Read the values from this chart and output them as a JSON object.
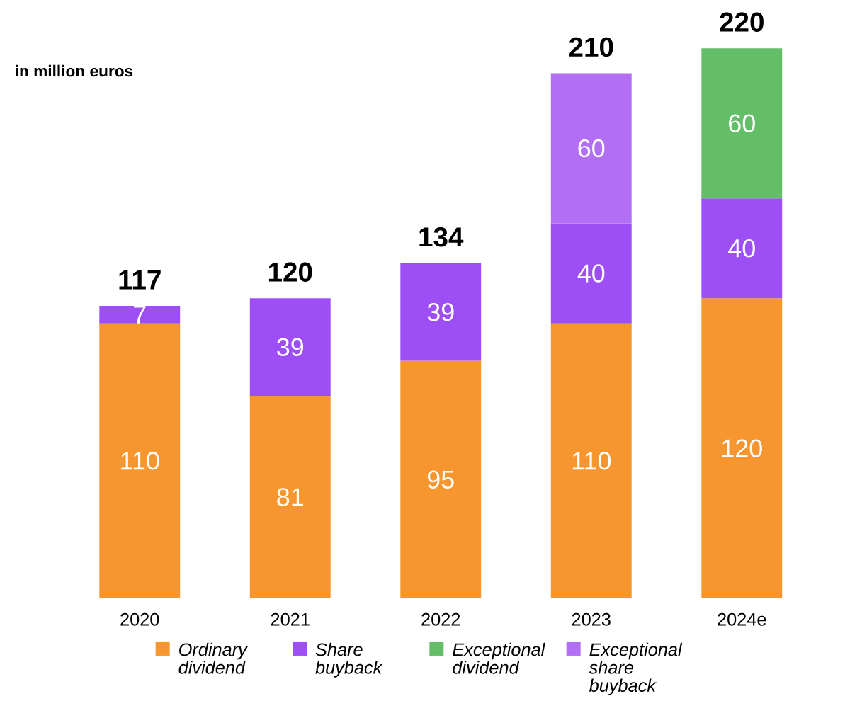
{
  "chart_data": {
    "type": "bar",
    "stacked": true,
    "data_labels": true,
    "legend": "bottom",
    "annotations": [
      "in million euros"
    ],
    "categories": [
      "2020",
      "2021",
      "2022",
      "2023",
      "2024e"
    ],
    "series": [
      {
        "name": "Ordinary dividend",
        "color": "#f7952f",
        "values": [
          110,
          81,
          95,
          110,
          120
        ]
      },
      {
        "name": "Share buyback",
        "color": "#9d4ef5",
        "values": [
          7,
          39,
          39,
          40,
          40
        ]
      },
      {
        "name": "Exceptional dividend",
        "color": "#63be67",
        "values": [
          null,
          null,
          null,
          null,
          60
        ]
      },
      {
        "name": "Exceptional share buyback",
        "color": "#b26ff5",
        "values": [
          null,
          null,
          null,
          60,
          null
        ]
      }
    ],
    "totals": [
      "117",
      "120",
      "134",
      "210",
      "220"
    ]
  }
}
